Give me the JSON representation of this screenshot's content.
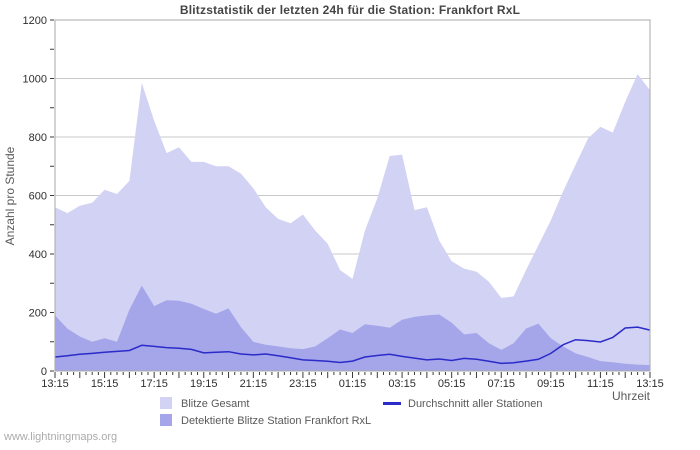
{
  "watermark": "www.lightningmaps.org",
  "chart_data": {
    "type": "area",
    "title": "Blitzstatistik der letzten 24h für die Station: Frankfort RxL",
    "xlabel": "Uhrzeit",
    "ylabel": "Anzahl pro Stunde",
    "ylim": [
      0,
      1200
    ],
    "y_tick_step": 200,
    "y_minor_step": 100,
    "grid": true,
    "legend_position": "bottom",
    "colors": {
      "grid": "#c9c9c9",
      "border": "#a9a9a9",
      "tick": "#3a3a3a"
    },
    "x_labels": [
      "13:15",
      "15:15",
      "17:15",
      "19:15",
      "21:15",
      "23:15",
      "01:15",
      "03:15",
      "05:15",
      "07:15",
      "09:15",
      "11:15",
      "13:15"
    ],
    "x": [
      "13:15",
      "13:45",
      "14:15",
      "14:45",
      "15:15",
      "15:45",
      "16:15",
      "16:45",
      "17:15",
      "17:45",
      "18:15",
      "18:45",
      "19:15",
      "19:45",
      "20:15",
      "20:45",
      "21:15",
      "21:45",
      "22:15",
      "22:45",
      "23:15",
      "23:45",
      "00:15",
      "00:45",
      "01:15",
      "01:45",
      "02:15",
      "02:45",
      "03:15",
      "03:45",
      "04:15",
      "04:45",
      "05:15",
      "05:45",
      "06:15",
      "06:45",
      "07:15",
      "07:45",
      "08:15",
      "08:45",
      "09:15",
      "09:45",
      "10:15",
      "10:45",
      "11:15",
      "11:45",
      "12:15",
      "12:45",
      "13:15"
    ],
    "series": [
      {
        "name": "Blitze Gesamt",
        "type": "area",
        "color": "#d2d2f4",
        "values": [
          560,
          540,
          565,
          575,
          620,
          605,
          650,
          985,
          855,
          745,
          765,
          715,
          715,
          700,
          700,
          675,
          625,
          560,
          520,
          505,
          535,
          480,
          435,
          345,
          315,
          480,
          590,
          735,
          740,
          550,
          560,
          445,
          375,
          350,
          340,
          305,
          250,
          255,
          345,
          430,
          515,
          615,
          705,
          795,
          835,
          815,
          920,
          1015,
          960
        ]
      },
      {
        "name": "Detektierte Blitze Station Frankfort RxL",
        "type": "area",
        "color": "#a5a5ea",
        "values": [
          190,
          145,
          118,
          100,
          112,
          100,
          210,
          292,
          222,
          242,
          240,
          230,
          212,
          196,
          214,
          150,
          100,
          90,
          84,
          78,
          75,
          84,
          112,
          142,
          130,
          160,
          155,
          148,
          175,
          185,
          190,
          193,
          165,
          125,
          130,
          95,
          72,
          95,
          145,
          162,
          112,
          84,
          60,
          48,
          34,
          30,
          25,
          22,
          20
        ]
      },
      {
        "name": "Durchschnitt aller Stationen",
        "type": "line",
        "color": "#2b2bc8",
        "values": [
          48,
          52,
          57,
          60,
          64,
          67,
          70,
          88,
          84,
          80,
          78,
          74,
          62,
          64,
          66,
          58,
          55,
          58,
          52,
          45,
          38,
          36,
          33,
          29,
          34,
          48,
          53,
          57,
          50,
          44,
          38,
          41,
          36,
          43,
          40,
          33,
          26,
          28,
          34,
          40,
          60,
          90,
          107,
          104,
          99,
          115,
          147,
          150,
          140
        ]
      }
    ]
  }
}
